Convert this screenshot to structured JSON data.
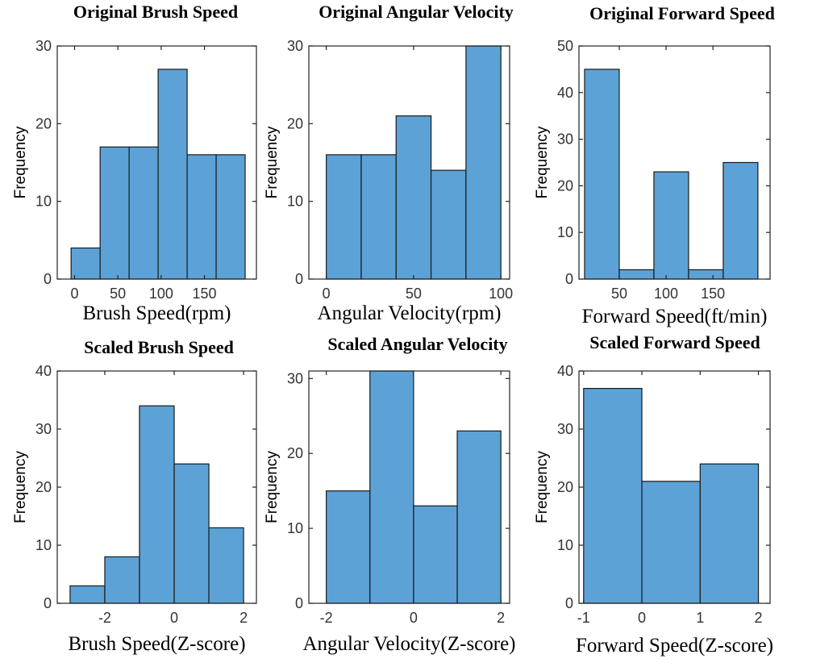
{
  "chart_data": [
    {
      "type": "histogram",
      "title": "Original Brush Speed",
      "xlabel": "Brush Speed(rpm)",
      "ylabel": "Frequency",
      "bins": [
        -4,
        29.5,
        63,
        96.5,
        130,
        163.5,
        197
      ],
      "counts": [
        4,
        17,
        17,
        27,
        16,
        16
      ],
      "xlim": [
        -20,
        210
      ],
      "ylim": [
        0,
        30
      ],
      "xticks": [
        0,
        50,
        100,
        150
      ],
      "yticks": [
        0,
        10,
        20,
        30
      ],
      "color": "#5ca2d6"
    },
    {
      "type": "histogram",
      "title": "Original Angular Velocity",
      "xlabel": "Angular Velocity(rpm)",
      "ylabel": "Frequency",
      "bins": [
        0,
        20,
        40,
        60,
        80,
        100
      ],
      "counts": [
        16,
        16,
        21,
        14,
        30
      ],
      "xlim": [
        -10,
        105
      ],
      "ylim": [
        0,
        30
      ],
      "xticks": [
        0,
        50,
        100
      ],
      "yticks": [
        0,
        10,
        20,
        30
      ],
      "color": "#5ca2d6"
    },
    {
      "type": "histogram",
      "title": "Original Forward Speed",
      "xlabel": "Forward Speed(ft/min)",
      "ylabel": "Frequency",
      "bins": [
        13,
        50,
        87,
        124,
        161,
        198
      ],
      "counts": [
        45,
        2,
        23,
        2,
        25
      ],
      "xlim": [
        7,
        211
      ],
      "ylim": [
        0,
        50
      ],
      "xticks": [
        50,
        100,
        150
      ],
      "yticks": [
        0,
        10,
        20,
        30,
        40,
        50
      ],
      "color": "#5ca2d6"
    },
    {
      "type": "histogram",
      "title": "Scaled Brush Speed",
      "xlabel": "Brush Speed(Z-score)",
      "ylabel": "Frequency",
      "bins": [
        -3,
        -2,
        -1,
        0,
        1,
        2
      ],
      "counts": [
        3,
        8,
        34,
        24,
        13
      ],
      "xlim": [
        -3.37,
        2.37
      ],
      "ylim": [
        0,
        40
      ],
      "xticks": [
        -2,
        0,
        2
      ],
      "yticks": [
        0,
        10,
        20,
        30,
        40
      ],
      "color": "#5ca2d6"
    },
    {
      "type": "histogram",
      "title": "Scaled Angular Velocity",
      "xlabel": "Angular Velocity(Z-score)",
      "ylabel": "Frequency",
      "bins": [
        -2,
        -1,
        0,
        1,
        2
      ],
      "counts": [
        15,
        31,
        13,
        23
      ],
      "xlim": [
        -2.4,
        2.2
      ],
      "ylim": [
        0,
        31
      ],
      "xticks": [
        -2,
        0,
        2
      ],
      "yticks": [
        0,
        10,
        20,
        30
      ],
      "color": "#5ca2d6"
    },
    {
      "type": "histogram",
      "title": "Scaled Forward Speed",
      "xlabel": "Forward Speed(Z-score)",
      "ylabel": "Frequency",
      "bins": [
        -1,
        0,
        1,
        2
      ],
      "counts": [
        37,
        21,
        24
      ],
      "xlim": [
        -1.08,
        2.2
      ],
      "ylim": [
        0,
        40
      ],
      "xticks": [
        -1,
        0,
        1,
        2
      ],
      "yticks": [
        0,
        10,
        20,
        30,
        40
      ],
      "color": "#5ca2d6"
    }
  ]
}
